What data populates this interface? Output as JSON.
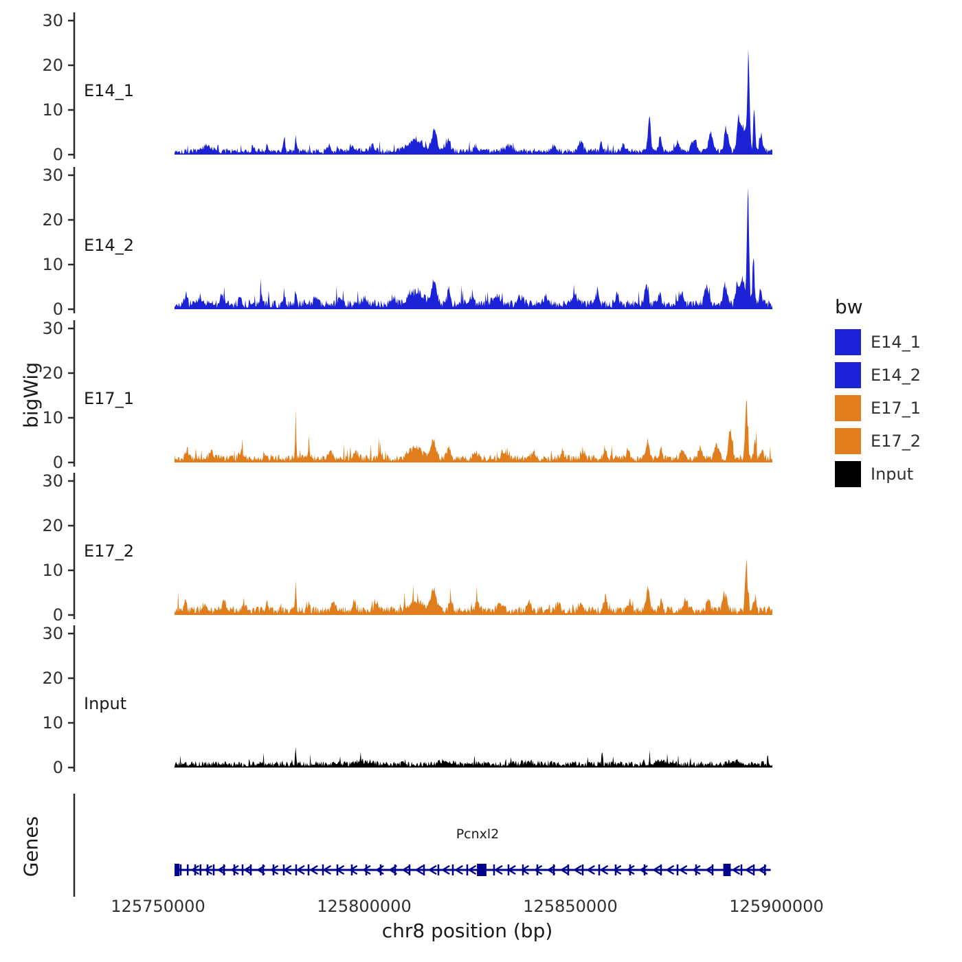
{
  "figure": {
    "y_axis_title": "bigWig",
    "genes_axis_title": "Genes",
    "x_axis_title": "chr8 position (bp)",
    "gene_label": "Pcnxl2"
  },
  "legend": {
    "title": "bw",
    "entries": [
      {
        "label": "E14_1",
        "color": "#1c23d6"
      },
      {
        "label": "E14_2",
        "color": "#1c23d6"
      },
      {
        "label": "E17_1",
        "color": "#e07e1e"
      },
      {
        "label": "E17_2",
        "color": "#e07e1e"
      },
      {
        "label": "Input",
        "color": "#000000"
      }
    ]
  },
  "chart_data": {
    "type": "area",
    "title": "",
    "xlabel": "chr8 position (bp)",
    "ylabel": "bigWig",
    "x_domain": [
      125754000,
      125899000
    ],
    "x_ticks": [
      {
        "bp": 125750000,
        "label": "125750000"
      },
      {
        "bp": 125800000,
        "label": "125800000"
      },
      {
        "bp": 125850000,
        "label": "125850000"
      },
      {
        "bp": 125900000,
        "label": "125900000"
      }
    ],
    "y_ticks": [
      0,
      10,
      20,
      30
    ],
    "ylim": [
      0,
      30
    ],
    "tracks": [
      {
        "name": "E14_1",
        "color": "#1c23d6",
        "seed": 101,
        "baseline": 0.85,
        "peaks": [
          [
            125762000,
            1.2,
            900
          ],
          [
            125773000,
            1.6,
            250
          ],
          [
            125776500,
            1.8,
            200
          ],
          [
            125780600,
            3.2,
            250
          ],
          [
            125783400,
            3.6,
            200
          ],
          [
            125791500,
            1.8,
            400
          ],
          [
            125797000,
            1.5,
            500
          ],
          [
            125802000,
            1.3,
            600
          ],
          [
            125812500,
            2.6,
            1800
          ],
          [
            125817000,
            4.6,
            600
          ],
          [
            125820500,
            3.0,
            400
          ],
          [
            125827000,
            1.4,
            500
          ],
          [
            125835000,
            1.2,
            900
          ],
          [
            125846000,
            1.3,
            500
          ],
          [
            125852500,
            1.8,
            600
          ],
          [
            125857500,
            2.2,
            300
          ],
          [
            125863000,
            1.5,
            400
          ],
          [
            125869200,
            7.0,
            350
          ],
          [
            125871800,
            4.0,
            300
          ],
          [
            125876000,
            2.0,
            500
          ],
          [
            125880000,
            2.8,
            600
          ],
          [
            125884000,
            4.2,
            500
          ],
          [
            125887800,
            5.2,
            450
          ],
          [
            125890800,
            6.5,
            400
          ],
          [
            125892000,
            5.0,
            700
          ],
          [
            125893200,
            19.5,
            280
          ],
          [
            125894600,
            9.0,
            250
          ],
          [
            125896200,
            4.0,
            350
          ]
        ]
      },
      {
        "name": "E14_2",
        "color": "#1c23d6",
        "seed": 202,
        "baseline": 1.25,
        "peaks": [
          [
            125756800,
            2.2,
            300
          ],
          [
            125760000,
            1.5,
            500
          ],
          [
            125765500,
            1.8,
            400
          ],
          [
            125770000,
            1.5,
            400
          ],
          [
            125775000,
            1.6,
            400
          ],
          [
            125780600,
            2.8,
            250
          ],
          [
            125783400,
            3.2,
            200
          ],
          [
            125788000,
            1.6,
            400
          ],
          [
            125794000,
            1.8,
            500
          ],
          [
            125800000,
            1.5,
            600
          ],
          [
            125807000,
            1.5,
            500
          ],
          [
            125812500,
            3.0,
            1800
          ],
          [
            125817000,
            5.0,
            600
          ],
          [
            125820500,
            3.0,
            400
          ],
          [
            125826000,
            1.8,
            500
          ],
          [
            125832000,
            2.0,
            800
          ],
          [
            125838000,
            1.6,
            600
          ],
          [
            125844000,
            1.8,
            500
          ],
          [
            125851000,
            2.4,
            600
          ],
          [
            125856500,
            3.0,
            400
          ],
          [
            125861500,
            2.4,
            400
          ],
          [
            125868500,
            5.0,
            400
          ],
          [
            125871800,
            3.2,
            300
          ],
          [
            125877000,
            2.6,
            500
          ],
          [
            125883000,
            3.6,
            600
          ],
          [
            125887500,
            4.6,
            450
          ],
          [
            125890500,
            5.5,
            350
          ],
          [
            125891800,
            6.0,
            500
          ],
          [
            125893100,
            24.5,
            260
          ],
          [
            125894400,
            11.0,
            220
          ],
          [
            125896200,
            3.5,
            350
          ]
        ]
      },
      {
        "name": "E17_1",
        "color": "#e07e1e",
        "seed": 303,
        "baseline": 1.05,
        "peaks": [
          [
            125757000,
            1.8,
            400
          ],
          [
            125763000,
            1.4,
            500
          ],
          [
            125770000,
            1.6,
            500
          ],
          [
            125776000,
            1.4,
            400
          ],
          [
            125783400,
            8.8,
            130
          ],
          [
            125786500,
            1.8,
            300
          ],
          [
            125792000,
            1.5,
            500
          ],
          [
            125798000,
            1.4,
            600
          ],
          [
            125804000,
            1.3,
            500
          ],
          [
            125812500,
            2.2,
            1600
          ],
          [
            125816800,
            4.4,
            600
          ],
          [
            125820500,
            2.6,
            400
          ],
          [
            125827000,
            1.5,
            500
          ],
          [
            125834000,
            1.4,
            800
          ],
          [
            125841000,
            1.3,
            500
          ],
          [
            125848000,
            1.5,
            500
          ],
          [
            125853000,
            1.8,
            500
          ],
          [
            125858500,
            2.2,
            400
          ],
          [
            125864000,
            1.6,
            400
          ],
          [
            125868800,
            4.0,
            400
          ],
          [
            125872000,
            2.6,
            300
          ],
          [
            125877000,
            2.0,
            500
          ],
          [
            125881500,
            2.4,
            500
          ],
          [
            125885500,
            3.2,
            500
          ],
          [
            125888800,
            6.0,
            400
          ],
          [
            125892700,
            12.0,
            300
          ],
          [
            125894800,
            3.8,
            300
          ],
          [
            125896500,
            2.5,
            300
          ]
        ]
      },
      {
        "name": "E17_2",
        "color": "#e07e1e",
        "seed": 404,
        "baseline": 1.15,
        "peaks": [
          [
            125756600,
            2.8,
            250
          ],
          [
            125761000,
            1.6,
            400
          ],
          [
            125766000,
            1.8,
            400
          ],
          [
            125771000,
            1.5,
            400
          ],
          [
            125776500,
            1.6,
            350
          ],
          [
            125783400,
            6.2,
            130
          ],
          [
            125786500,
            1.8,
            300
          ],
          [
            125792500,
            1.8,
            450
          ],
          [
            125797500,
            2.0,
            450
          ],
          [
            125803000,
            1.5,
            500
          ],
          [
            125812500,
            2.2,
            1600
          ],
          [
            125816800,
            4.8,
            600
          ],
          [
            125821000,
            2.8,
            400
          ],
          [
            125827500,
            1.6,
            500
          ],
          [
            125833000,
            1.8,
            700
          ],
          [
            125840000,
            1.7,
            500
          ],
          [
            125847000,
            1.6,
            500
          ],
          [
            125852500,
            2.0,
            500
          ],
          [
            125858500,
            2.6,
            400
          ],
          [
            125864500,
            1.8,
            400
          ],
          [
            125868800,
            5.0,
            400
          ],
          [
            125872000,
            2.8,
            300
          ],
          [
            125878000,
            2.2,
            500
          ],
          [
            125883500,
            2.6,
            500
          ],
          [
            125887500,
            3.8,
            450
          ],
          [
            125892700,
            10.5,
            300
          ],
          [
            125894800,
            3.2,
            300
          ]
        ]
      },
      {
        "name": "Input",
        "color": "#000000",
        "seed": 505,
        "baseline": 0.85,
        "peaks": [
          [
            125783400,
            3.6,
            130
          ],
          [
            125800000,
            0.6,
            2000
          ],
          [
            125820000,
            0.8,
            1500
          ],
          [
            125840000,
            0.5,
            1500
          ],
          [
            125857700,
            2.6,
            160
          ],
          [
            125872000,
            0.6,
            1200
          ],
          [
            125890000,
            0.7,
            1500
          ]
        ]
      }
    ],
    "gene": {
      "name": "Pcnxl2",
      "strand": "-",
      "chrom": "chr8",
      "start": 125754200,
      "end": 125898600,
      "color": "#00008b",
      "blocks": [
        [
          125754600,
          1200
        ],
        [
          125828500,
          2300
        ],
        [
          125888000,
          1800
        ]
      ],
      "exons": [
        125755500,
        125757200,
        125759000,
        125760300,
        125762000,
        125763500,
        125766000,
        125768500,
        125770500,
        125772500,
        125775500,
        125778000,
        125780500,
        125783500,
        125786500,
        125790000,
        125793500,
        125797000,
        125800500,
        125804000,
        125807500,
        125811000,
        125814500,
        125818000,
        125821500,
        125825000,
        125831500,
        125835000,
        125838500,
        125842000,
        125846000,
        125849500,
        125853000,
        125857000,
        125861000,
        125864500,
        125868000,
        125872000,
        125876000,
        125880500,
        125884500,
        125891500,
        125894500,
        125897200
      ],
      "arrow_spacing_bp": 3200
    }
  }
}
